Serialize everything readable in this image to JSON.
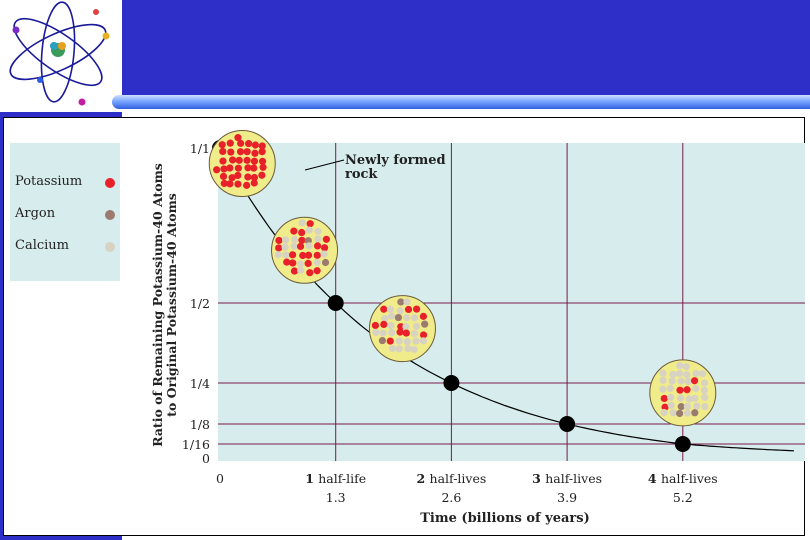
{
  "legend": {
    "items": [
      {
        "label": "Potassium",
        "color": "#e8202a"
      },
      {
        "label": "Argon",
        "color": "#9a7b6e"
      },
      {
        "label": "Calcium",
        "color": "#d8d2c2"
      }
    ]
  },
  "annotation": {
    "line1": "Newly formed",
    "line2": "rock"
  },
  "colors": {
    "slide_blue": "#2e2ec8",
    "plot_bg": "#d7ecec",
    "grid": "#7a1a4a",
    "potassium": "#e8202a",
    "argon": "#9a7b6e",
    "calcium": "#d8d2c2",
    "atom_sphere": "#f1ec8a"
  },
  "chart_data": {
    "type": "line",
    "xlabel": "Time (billions of years)",
    "ylabel_line1": "Ratio of Remaining Potassium-40 Atoms",
    "ylabel_line2": "to Original Potassium-40 Atoms",
    "x_ticks": [
      {
        "value": 0,
        "label": "0",
        "sublabel": ""
      },
      {
        "value": 1.3,
        "label": "1 half-life",
        "sublabel": "1.3"
      },
      {
        "value": 2.6,
        "label": "2 half-lives",
        "sublabel": "2.6"
      },
      {
        "value": 3.9,
        "label": "3 half-lives",
        "sublabel": "3.9"
      },
      {
        "value": 5.2,
        "label": "4 half-lives",
        "sublabel": "5.2"
      }
    ],
    "y_ticks": [
      {
        "value": 1,
        "label": "1/1"
      },
      {
        "value": 0.5,
        "label": "1/2"
      },
      {
        "value": 0.25,
        "label": "1/4"
      },
      {
        "value": 0.125,
        "label": "1/8"
      },
      {
        "value": 0.0625,
        "label": "1/16"
      },
      {
        "value": 0,
        "label": "0"
      }
    ],
    "xlim": [
      0,
      6.0
    ],
    "ylim": [
      0,
      1
    ],
    "grid": true,
    "points": [
      {
        "x": 0,
        "y": 1
      },
      {
        "x": 1.3,
        "y": 0.5
      },
      {
        "x": 2.6,
        "y": 0.25
      },
      {
        "x": 3.9,
        "y": 0.125
      },
      {
        "x": 5.2,
        "y": 0.0625
      }
    ],
    "rock_samples": [
      {
        "x": 0.25,
        "y": 0.95,
        "potassium_fraction": 1.0,
        "argon_fraction": 0,
        "calcium_fraction": 0
      },
      {
        "x": 0.95,
        "y": 0.67,
        "potassium_fraction": 0.55,
        "argon_fraction": 0.1,
        "calcium_fraction": 0.35
      },
      {
        "x": 2.05,
        "y": 0.42,
        "potassium_fraction": 0.25,
        "argon_fraction": 0.1,
        "calcium_fraction": 0.65
      },
      {
        "x": 5.2,
        "y": 0.22,
        "potassium_fraction": 0.12,
        "argon_fraction": 0.1,
        "calcium_fraction": 0.78
      }
    ]
  }
}
